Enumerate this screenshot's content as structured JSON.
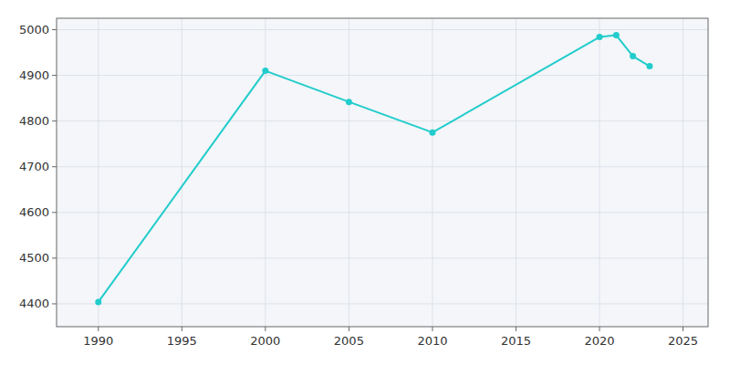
{
  "chart_data": {
    "type": "line",
    "x": [
      1990,
      2000,
      2005,
      2010,
      2020,
      2021,
      2022,
      2023
    ],
    "values": [
      4404,
      4910,
      4842,
      4775,
      4984,
      4988,
      4942,
      4920
    ],
    "color": "#22CCCC",
    "marker": "circle",
    "xlim": [
      1987.5,
      2026.5
    ],
    "ylim": [
      4350,
      5025
    ],
    "xticks": [
      1990,
      1995,
      2000,
      2005,
      2010,
      2015,
      2020,
      2025
    ],
    "yticks": [
      4400,
      4500,
      4600,
      4700,
      4800,
      4900,
      5000
    ],
    "grid": true
  }
}
